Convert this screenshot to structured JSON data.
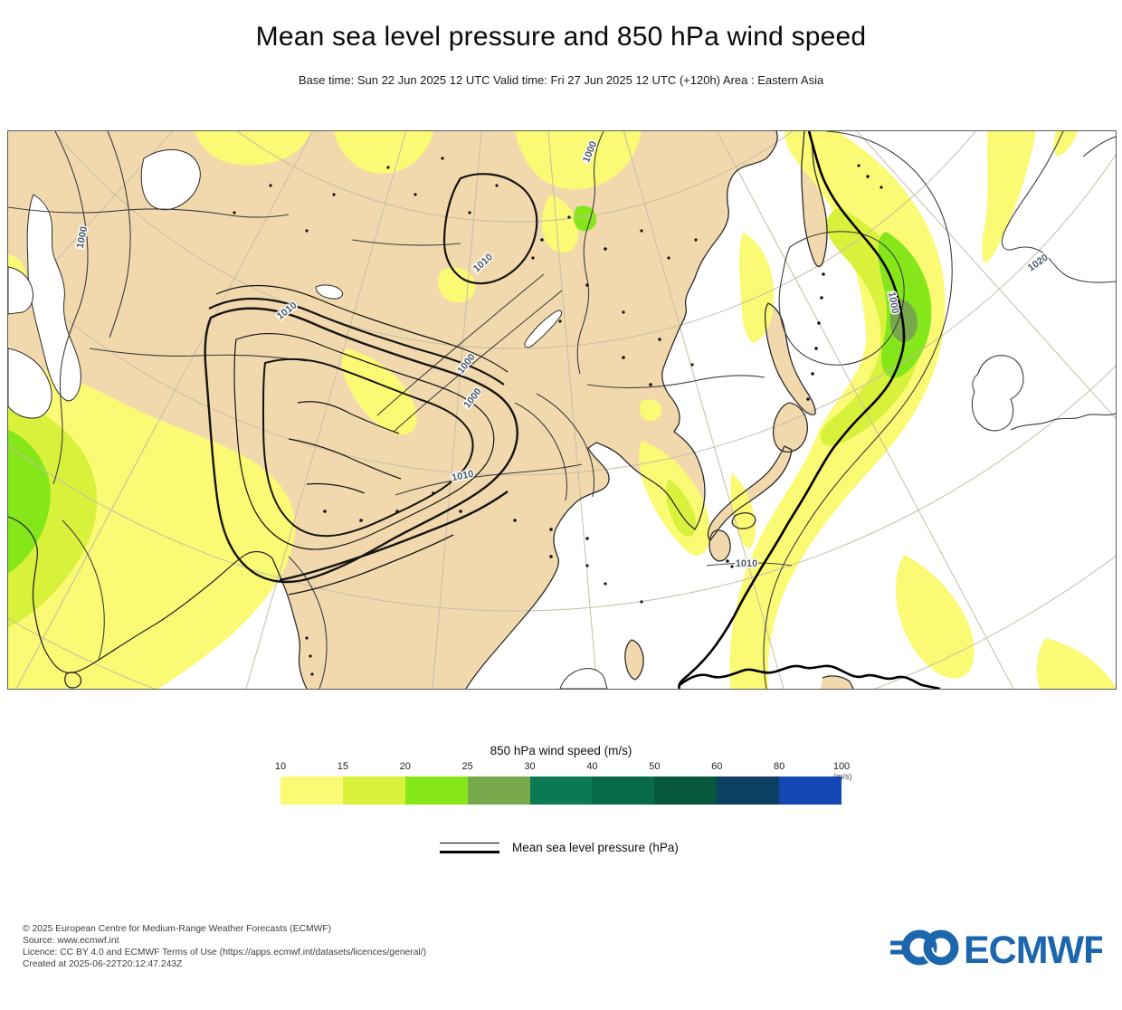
{
  "header": {
    "title": "Mean sea level pressure and 850 hPa wind speed",
    "subtitle": "Base time: Sun 22 Jun 2025 12 UTC Valid time: Fri 27 Jun 2025 12 UTC (+120h) Area : Eastern Asia"
  },
  "map": {
    "isobar_labels": [
      "1000",
      "1010",
      "1010",
      "1000",
      "1000",
      "1000",
      "1010",
      "1010",
      "1000",
      "1020"
    ]
  },
  "legend": {
    "wind": {
      "title": "850 hPa wind speed (m/s)",
      "unit": "(m/s)",
      "ticks": [
        "10",
        "15",
        "20",
        "25",
        "30",
        "40",
        "50",
        "60",
        "80",
        "100"
      ],
      "colors": [
        "#fafa74",
        "#d8f23c",
        "#85e71a",
        "#78a84c",
        "#0b7a54",
        "#096a4b",
        "#07563e",
        "#0d3f62",
        "#1546b4"
      ]
    },
    "pressure": {
      "label": "Mean sea level pressure (hPa)"
    }
  },
  "footer": {
    "lines": [
      "© 2025 European Centre for Medium-Range Weather Forecasts (ECMWF)",
      "Source: www.ecmwf.int",
      "Licence: CC BY 4.0 and ECMWF Terms of Use (https://apps.ecmwf.int/datasets/licences/general/)",
      "Created at 2025-06-22T20:12:47.243Z"
    ]
  },
  "logo": {
    "text": "ECMWF"
  },
  "chart_data": {
    "type": "heatmap",
    "title": "Mean sea level pressure and 850 hPa wind speed",
    "area": "Eastern Asia",
    "base_time": "Sun 22 Jun 2025 12 UTC",
    "valid_time": "Fri 27 Jun 2025 12 UTC (+120h)",
    "lead_time_hours": 120,
    "fill_variable": "850 hPa wind speed",
    "fill_units": "m/s",
    "fill_levels": [
      10,
      15,
      20,
      25,
      30,
      40,
      50,
      60,
      80,
      100
    ],
    "fill_colors": [
      "#fafa74",
      "#d8f23c",
      "#85e71a",
      "#78a84c",
      "#0b7a54",
      "#096a4b",
      "#07563e",
      "#0d3f62",
      "#1546b4"
    ],
    "contour_variable": "Mean sea level pressure",
    "contour_units": "hPa",
    "isobar_labels_visible": [
      1000,
      1010,
      1020
    ],
    "legend_position": "bottom"
  }
}
